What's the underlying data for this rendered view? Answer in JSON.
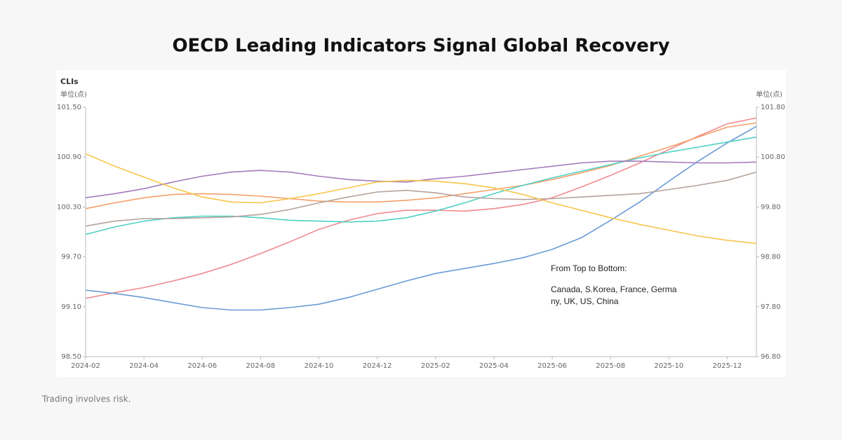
{
  "page_title": "OECD Leading Indicators Signal Global Recovery",
  "footer": "Trading involves risk.",
  "chart_data": {
    "type": "line",
    "ylabel": "CLIs",
    "y_unit": "单位(点)",
    "y2_unit": "单位(点)",
    "annotation": [
      "From Top to Bottom:",
      "Canada, S.Korea, France, Germa",
      "ny, UK, US, China"
    ],
    "categories": [
      "2024-02",
      null,
      "2024-04",
      null,
      "2024-06",
      null,
      "2024-08",
      null,
      "2024-10",
      null,
      "2024-12",
      null,
      "2025-02",
      null,
      "2025-04",
      null,
      "2025-06",
      null,
      "2025-08",
      null,
      "2025-10",
      null,
      "2025-12",
      null
    ],
    "ylim": [
      98.5,
      101.5
    ],
    "yticks": [
      {
        "value": 98.5,
        "label": "98.50"
      },
      {
        "value": 99.1,
        "label": "99.10"
      },
      {
        "value": 99.7,
        "label": "99.70"
      },
      {
        "value": 100.3,
        "label": "100.30"
      },
      {
        "value": 100.9,
        "label": "100.90"
      },
      {
        "value": 101.5,
        "label": "101.50"
      }
    ],
    "y2lim": [
      96.8,
      101.8
    ],
    "y2ticks": [
      {
        "value": 96.8,
        "label": "96.80"
      },
      {
        "value": 97.8,
        "label": "97.80"
      },
      {
        "value": 98.8,
        "label": "98.80"
      },
      {
        "value": 99.8,
        "label": "99.80"
      },
      {
        "value": 100.8,
        "label": "100.80"
      },
      {
        "value": 101.8,
        "label": "101.80"
      }
    ],
    "grid": false,
    "series": [
      {
        "color": "#f08a8e",
        "values": [
          99.2,
          99.27,
          99.33,
          99.41,
          99.5,
          99.61,
          99.74,
          99.88,
          100.03,
          100.14,
          100.22,
          100.26,
          100.26,
          100.25,
          100.28,
          100.33,
          100.41,
          100.54,
          100.68,
          100.83,
          100.99,
          101.15,
          101.3,
          101.37
        ]
      },
      {
        "color": "#f5a06a",
        "values": [
          100.28,
          100.35,
          100.41,
          100.45,
          100.46,
          100.45,
          100.43,
          100.4,
          100.37,
          100.36,
          100.36,
          100.38,
          100.41,
          100.46,
          100.51,
          100.56,
          100.63,
          100.71,
          100.8,
          100.91,
          101.02,
          101.14,
          101.26,
          101.31
        ]
      },
      {
        "color": "#6a9ad6",
        "values": [
          99.3,
          99.26,
          99.21,
          99.15,
          99.09,
          99.06,
          99.06,
          99.09,
          99.13,
          99.21,
          99.31,
          99.41,
          99.5,
          99.56,
          99.62,
          99.69,
          99.79,
          99.93,
          100.14,
          100.36,
          100.61,
          100.85,
          101.07,
          101.27
        ]
      },
      {
        "color": "#4fd1c5",
        "values": [
          99.97,
          100.06,
          100.13,
          100.17,
          100.19,
          100.19,
          100.17,
          100.14,
          100.13,
          100.12,
          100.13,
          100.17,
          100.25,
          100.35,
          100.46,
          100.56,
          100.65,
          100.73,
          100.81,
          100.89,
          100.96,
          101.02,
          101.08,
          101.14
        ]
      },
      {
        "color": "#a57bbd",
        "values": [
          100.41,
          100.46,
          100.52,
          100.6,
          100.67,
          100.72,
          100.74,
          100.72,
          100.67,
          100.63,
          100.61,
          100.6,
          100.64,
          100.67,
          100.71,
          100.75,
          100.79,
          100.83,
          100.85,
          100.85,
          100.84,
          100.83,
          100.83,
          100.84
        ]
      },
      {
        "color": "#b3a29c",
        "values": [
          100.07,
          100.13,
          100.16,
          100.16,
          100.17,
          100.18,
          100.21,
          100.27,
          100.35,
          100.42,
          100.48,
          100.5,
          100.47,
          100.42,
          100.4,
          100.39,
          100.4,
          100.42,
          100.44,
          100.46,
          100.51,
          100.56,
          100.62,
          100.72
        ]
      },
      {
        "color": "#f8c54a",
        "values": [
          100.94,
          100.79,
          100.66,
          100.53,
          100.42,
          100.36,
          100.35,
          100.4,
          100.46,
          100.53,
          100.6,
          100.62,
          100.61,
          100.58,
          100.53,
          100.45,
          100.35,
          100.26,
          100.17,
          100.09,
          100.02,
          99.95,
          99.9,
          99.86
        ]
      }
    ]
  }
}
